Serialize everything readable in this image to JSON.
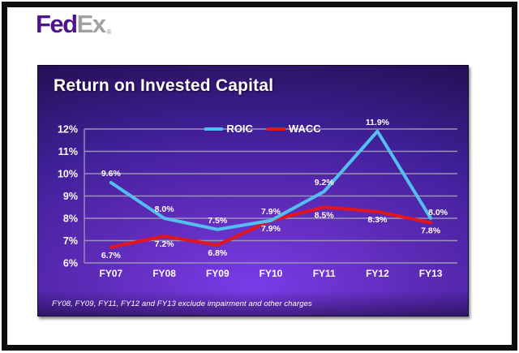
{
  "header": {
    "logo": {
      "fed": "Fed",
      "ex": "Ex",
      "registered": "®",
      "fed_color": "#4d148c",
      "ex_color": "#a1a1a4"
    }
  },
  "slide": {
    "title": "Return on Invested Capital",
    "footnote": "FY08, FY09, FY11, FY12 and FY13 exclude impairment and other charges"
  },
  "chart_data": {
    "type": "line",
    "title": "Return on Invested Capital",
    "categories": [
      "FY07",
      "FY08",
      "FY09",
      "FY10",
      "FY11",
      "FY12",
      "FY13"
    ],
    "series": [
      {
        "name": "ROIC",
        "color": "#55bef0",
        "values": [
          9.6,
          8.0,
          7.5,
          7.9,
          9.2,
          11.9,
          8.0
        ],
        "point_labels": [
          "9.6%",
          "8.0%",
          "7.5%",
          "7.9%",
          "9.2%",
          "11.9%",
          "8.0%"
        ],
        "label_side": "above"
      },
      {
        "name": "WACC",
        "color": "#e2151f",
        "values": [
          6.7,
          7.2,
          6.8,
          7.9,
          8.5,
          8.3,
          7.8
        ],
        "point_labels": [
          "6.7%",
          "7.2%",
          "6.8%",
          "7.9%",
          "8.5%",
          "8.3%",
          "7.8%"
        ],
        "label_side": "below"
      }
    ],
    "ylim": [
      6,
      12
    ],
    "yticks": [
      {
        "value": 6,
        "label": "6%"
      },
      {
        "value": 7,
        "label": "7%"
      },
      {
        "value": 8,
        "label": "8%"
      },
      {
        "value": 9,
        "label": "9%"
      },
      {
        "value": 10,
        "label": "10%"
      },
      {
        "value": 11,
        "label": "11%"
      },
      {
        "value": 12,
        "label": "12%"
      }
    ],
    "grid": "horizontal",
    "gridline_color": "#9c92b6",
    "legend_position": "top-center",
    "footnote": "FY08, FY09, FY11, FY12 and FY13 exclude impairment and other charges"
  }
}
